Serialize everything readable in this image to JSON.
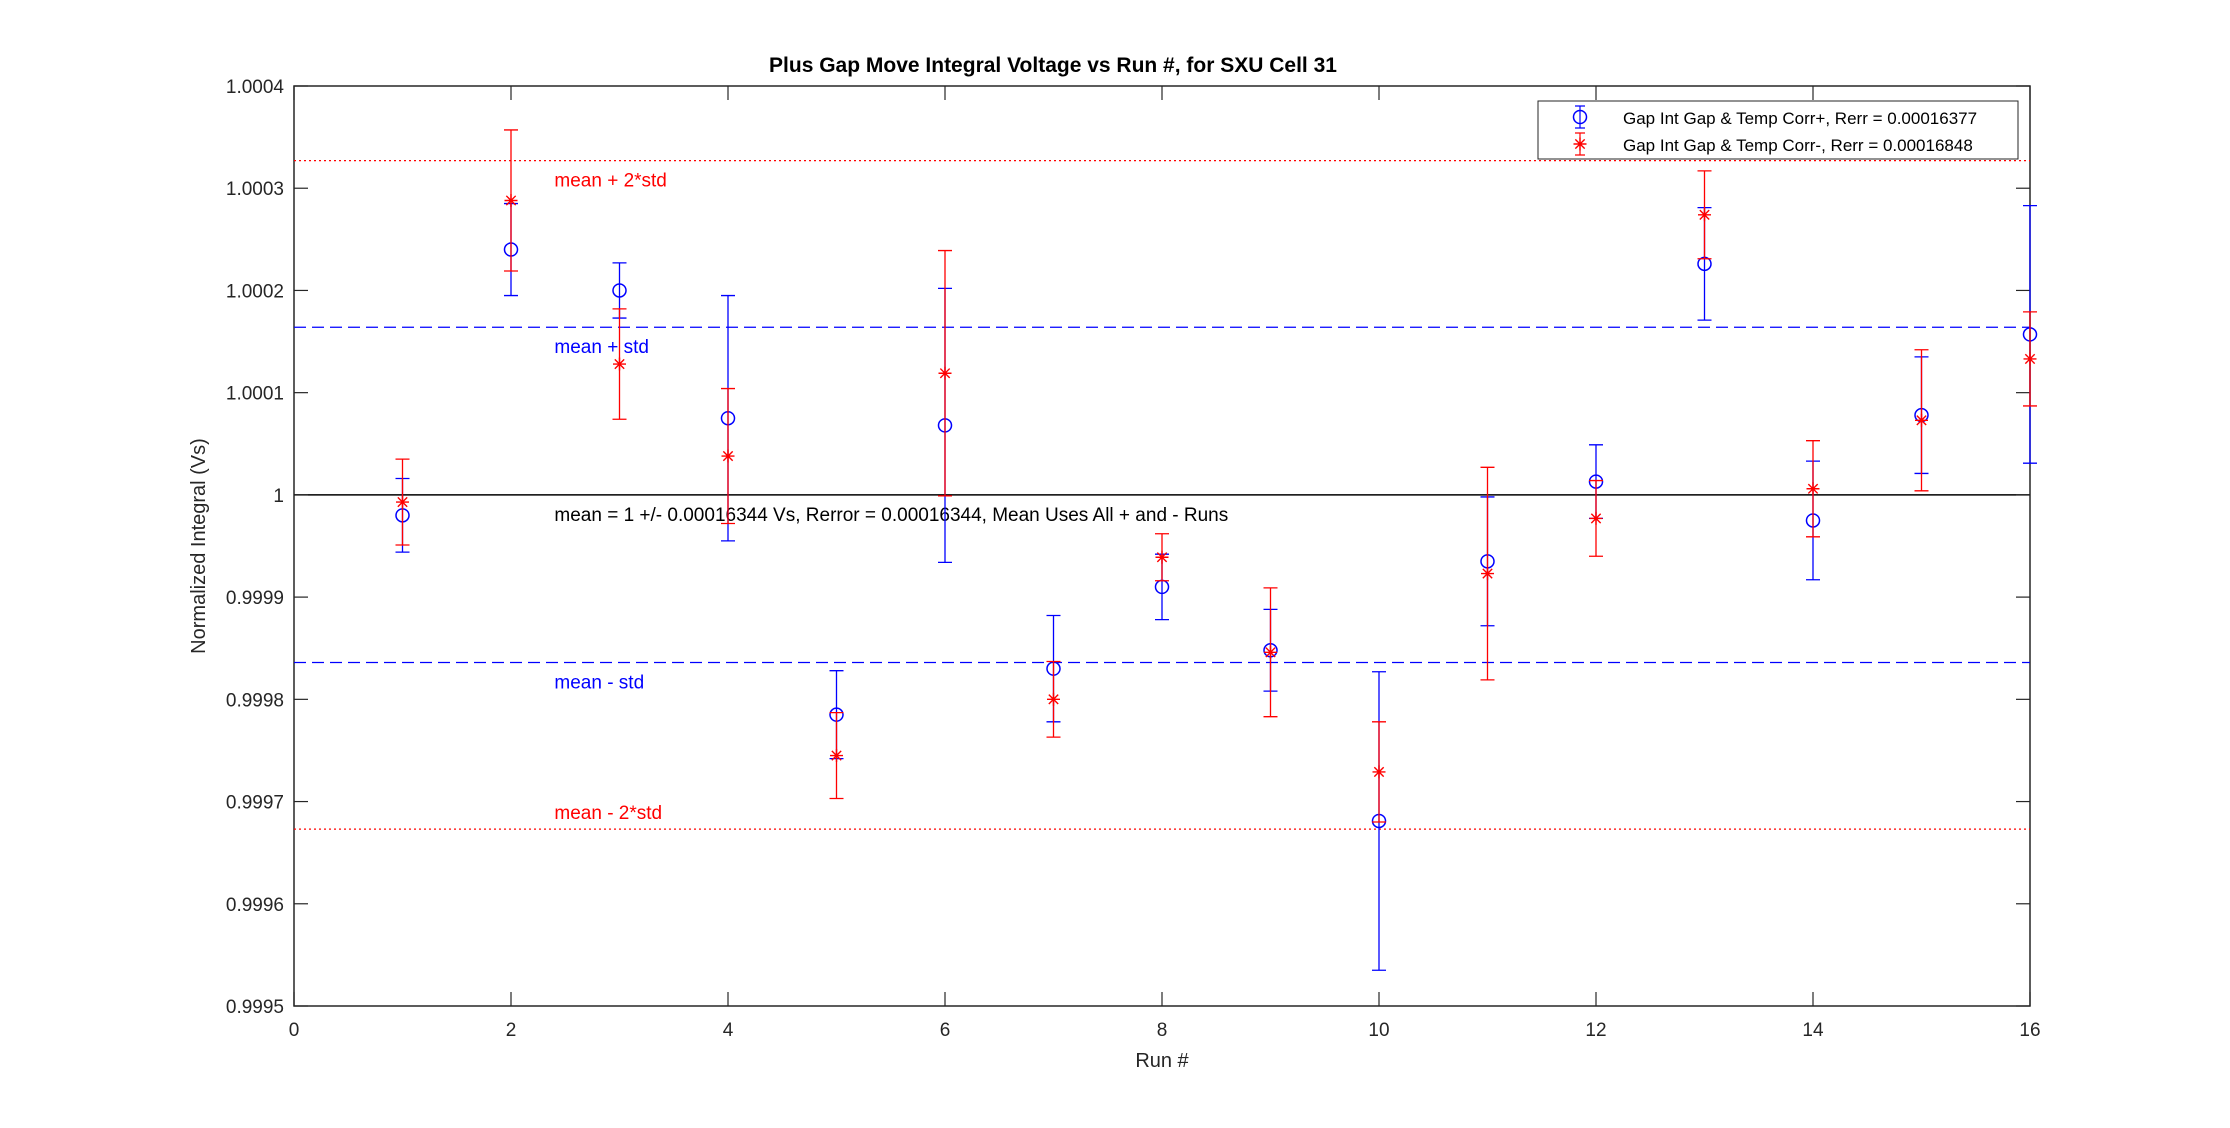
{
  "chart_data": {
    "type": "scatter",
    "title": "Plus Gap Move Integral Voltage vs Run #, for SXU Cell 31",
    "xlabel": "Run #",
    "ylabel": "Normalized Integral (Vs)",
    "xlim": [
      0,
      16
    ],
    "ylim": [
      0.9995,
      1.0004
    ],
    "xticks": [
      0,
      2,
      4,
      6,
      8,
      10,
      12,
      14,
      16
    ],
    "xtick_labels": [
      "0",
      "2",
      "4",
      "6",
      "8",
      "10",
      "12",
      "14",
      "16"
    ],
    "yticks": [
      0.9995,
      0.9996,
      0.9997,
      0.9998,
      0.9999,
      1,
      1.0001,
      1.0002,
      1.0003,
      1.0004
    ],
    "ytick_labels": [
      "0.9995",
      "0.9996",
      "0.9997",
      "0.9998",
      "0.9999",
      "1",
      "1.0001",
      "1.0002",
      "1.0003",
      "1.0004"
    ],
    "grid": false,
    "legend_position": "top-right",
    "series": [
      {
        "name": "Gap Int Gap & Temp Corr+, Rerr = 0.00016377",
        "color": "#0000ff",
        "marker": "circle",
        "x": [
          1,
          2,
          3,
          4,
          5,
          6,
          7,
          8,
          9,
          10,
          11,
          12,
          13,
          14,
          15,
          16
        ],
        "y": [
          0.99998,
          1.00024,
          1.0002,
          1.000075,
          0.999785,
          1.000068,
          0.99983,
          0.99991,
          0.999848,
          0.999681,
          0.999935,
          1.000013,
          1.000226,
          0.999975,
          1.000078,
          1.000157
        ],
        "err": [
          3.6e-05,
          4.5e-05,
          2.7e-05,
          0.00012,
          4.3e-05,
          0.000134,
          5.2e-05,
          3.2e-05,
          4e-05,
          0.000146,
          6.3e-05,
          3.6e-05,
          5.5e-05,
          5.8e-05,
          5.7e-05,
          0.000126
        ]
      },
      {
        "name": "Gap Int Gap & Temp  Corr-, Rerr = 0.00016848",
        "color": "#ff0000",
        "marker": "asterisk",
        "x": [
          1,
          2,
          3,
          4,
          5,
          6,
          7,
          8,
          9,
          10,
          11,
          12,
          13,
          14,
          15,
          16
        ],
        "y": [
          0.999993,
          1.000288,
          1.000128,
          1.000038,
          0.999745,
          1.000119,
          0.9998,
          0.999939,
          0.999846,
          0.999729,
          0.999923,
          0.999977,
          1.000274,
          1.000006,
          1.000073,
          1.000133
        ],
        "err": [
          4.2e-05,
          6.9e-05,
          5.4e-05,
          6.6e-05,
          4.2e-05,
          0.00012,
          3.7e-05,
          2.3e-05,
          6.3e-05,
          4.9e-05,
          0.000104,
          3.7e-05,
          4.3e-05,
          4.7e-05,
          6.9e-05,
          4.6e-05
        ]
      }
    ],
    "reference_lines": [
      {
        "y": 1,
        "color": "#000000",
        "style": "solid",
        "label": "mean = 1 +/- 0.00016344 Vs, Rerror = 0.00016344, Mean Uses All + and - Runs",
        "label_color": "#000000",
        "label_x": 2.4,
        "label_side": "below"
      },
      {
        "y": 1.000164,
        "color": "#0000ff",
        "style": "dashed",
        "label": "mean + std",
        "label_color": "#0000ff",
        "label_x": 2.4,
        "label_side": "below"
      },
      {
        "y": 0.999836,
        "color": "#0000ff",
        "style": "dashed",
        "label": "mean - std",
        "label_color": "#0000ff",
        "label_x": 2.4,
        "label_side": "below"
      },
      {
        "y": 1.000327,
        "color": "#ff0000",
        "style": "dotted",
        "label": "mean + 2*std",
        "label_color": "#ff0000",
        "label_x": 2.4,
        "label_side": "below"
      },
      {
        "y": 0.999673,
        "color": "#ff0000",
        "style": "dotted",
        "label": "mean - 2*std",
        "label_color": "#ff0000",
        "label_x": 2.4,
        "label_side": "above"
      }
    ]
  }
}
